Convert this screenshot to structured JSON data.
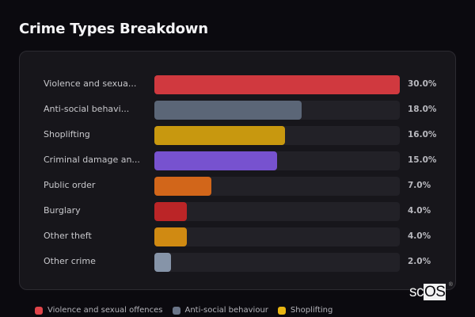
{
  "header": {
    "title": "Crime Types Breakdown"
  },
  "chart_data": {
    "type": "bar",
    "orientation": "horizontal",
    "title": "Crime Types Breakdown",
    "categories": [
      "Violence and sexual offences",
      "Anti-social behaviour",
      "Shoplifting",
      "Criminal damage and arson",
      "Public order",
      "Burglary",
      "Other theft",
      "Other crime"
    ],
    "display_labels": [
      "Violence and sexua...",
      "Anti-social behavi...",
      "Shoplifting",
      "Criminal damage an...",
      "Public order",
      "Burglary",
      "Other theft",
      "Other crime"
    ],
    "values": [
      30.0,
      18.0,
      16.0,
      15.0,
      7.0,
      4.0,
      4.0,
      2.0
    ],
    "value_labels": [
      "30.0%",
      "18.0%",
      "16.0%",
      "15.0%",
      "7.0%",
      "4.0%",
      "4.0%",
      "2.0%"
    ],
    "colors": [
      "#d0393f",
      "#5b6677",
      "#c8980f",
      "#7752cf",
      "#d2661a",
      "#bb2527",
      "#d08a12",
      "#8694a8"
    ],
    "unit": "%",
    "scale_max": 30.0,
    "grid": false,
    "legend_position": "bottom",
    "legend": [
      {
        "label": "Violence and sexual offences",
        "color": "#e0444a"
      },
      {
        "label": "Anti-social behaviour",
        "color": "#6a7588"
      },
      {
        "label": "Shoplifting",
        "color": "#e8b512"
      }
    ]
  },
  "branding": {
    "logo_sc": "sc",
    "logo_os": "OS",
    "logo_reg": "®"
  }
}
